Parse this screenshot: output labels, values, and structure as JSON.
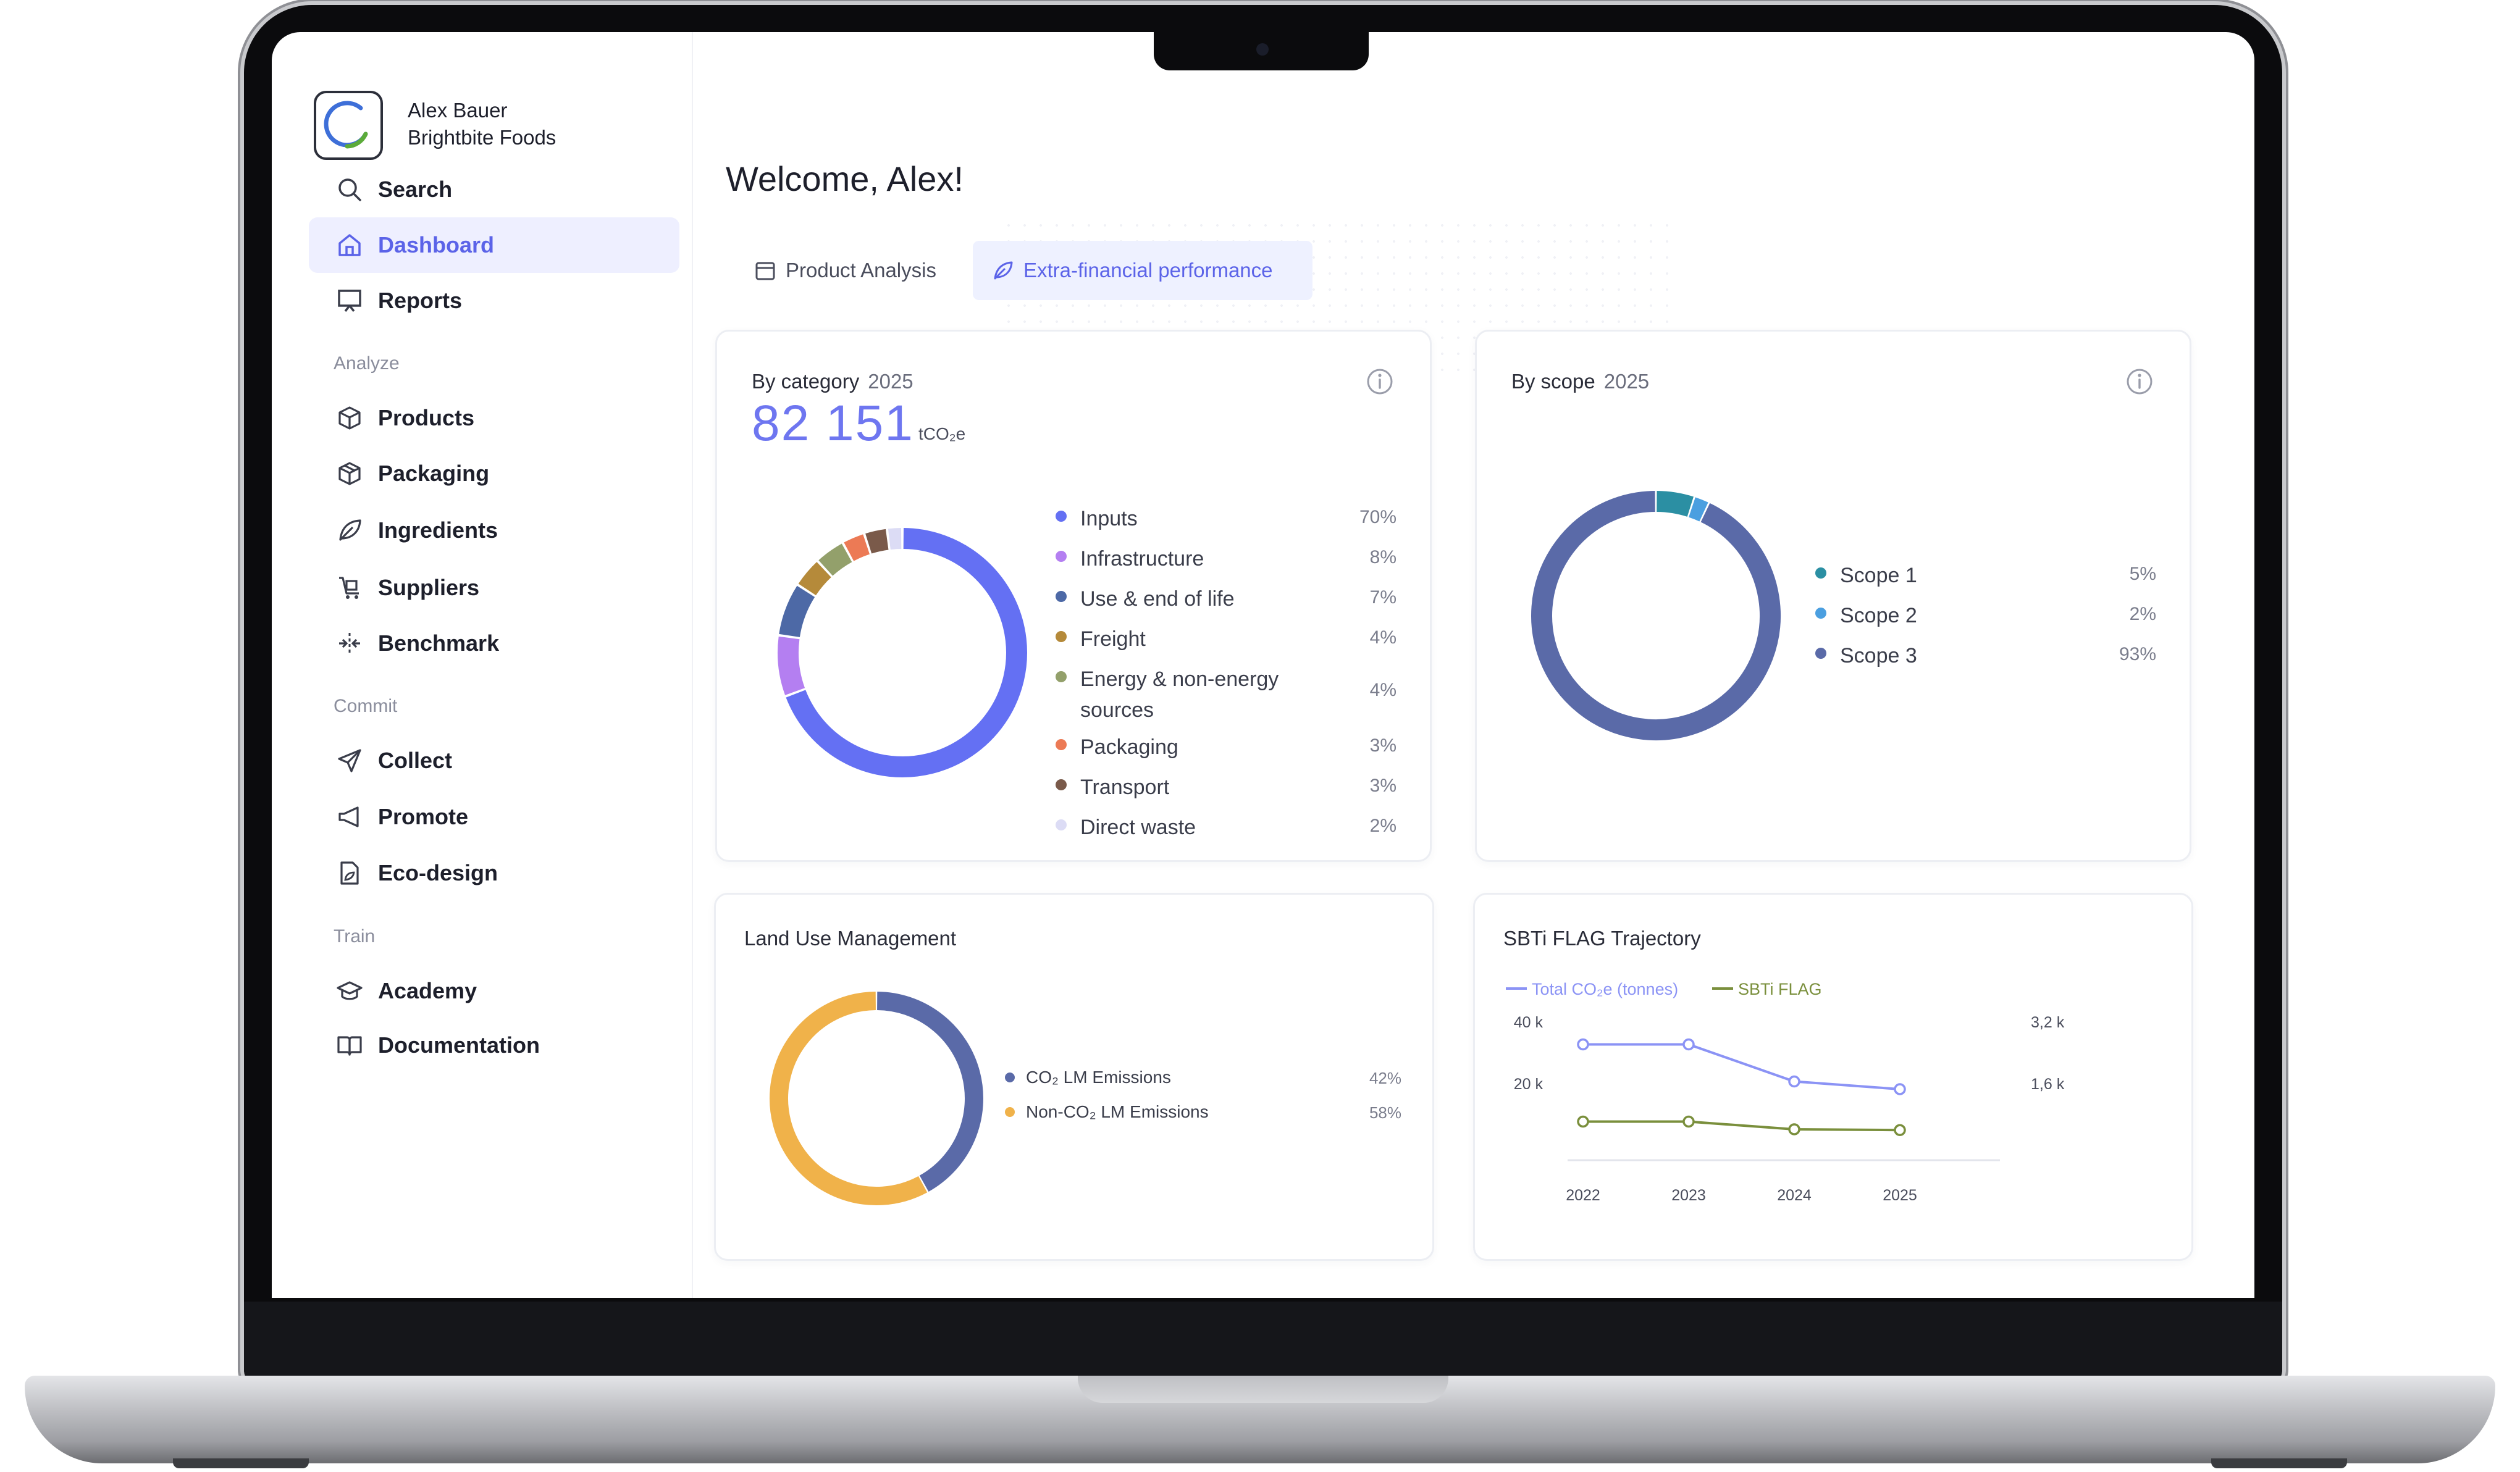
{
  "user": {
    "name": "Alex Bauer",
    "org": "Brightbite Foods"
  },
  "nav": {
    "search": "Search",
    "dashboard": "Dashboard",
    "reports": "Reports",
    "analyze_label": "Analyze",
    "products": "Products",
    "packaging": "Packaging",
    "ingredients": "Ingredients",
    "suppliers": "Suppliers",
    "benchmark": "Benchmark",
    "commit_label": "Commit",
    "collect": "Collect",
    "promote": "Promote",
    "ecodesign": "Eco-design",
    "train_label": "Train",
    "academy": "Academy",
    "documentation": "Documentation"
  },
  "header": {
    "welcome": "Welcome, Alex!"
  },
  "tabs": {
    "product_analysis": "Product Analysis",
    "extra_financial": "Extra-financial performance"
  },
  "colors": {
    "accent": "#5b63e8",
    "scope3": "#5a6aa8",
    "orange": "#f0b24a"
  },
  "by_category": {
    "title": "By category",
    "year": "2025",
    "total": "82 151",
    "unit": "tCO₂e",
    "items": [
      {
        "label": "Inputs",
        "pct": "70%",
        "value": 70,
        "color": "#6470f3"
      },
      {
        "label": "Infrastructure",
        "pct": "8%",
        "value": 8,
        "color": "#b47ff1"
      },
      {
        "label": "Use & end of life",
        "pct": "7%",
        "value": 7,
        "color": "#4d69a6"
      },
      {
        "label": "Freight",
        "pct": "4%",
        "value": 4,
        "color": "#b58a3a"
      },
      {
        "label": "Energy & non-energy sources",
        "pct": "4%",
        "value": 4,
        "color": "#93a06b"
      },
      {
        "label": "Packaging",
        "pct": "3%",
        "value": 3,
        "color": "#ec7a55"
      },
      {
        "label": "Transport",
        "pct": "3%",
        "value": 3,
        "color": "#7a5a4a"
      },
      {
        "label": "Direct waste",
        "pct": "2%",
        "value": 2,
        "color": "#dcdcf5"
      }
    ]
  },
  "by_scope": {
    "title": "By scope",
    "year": "2025",
    "items": [
      {
        "label": "Scope 1",
        "pct": "5%",
        "value": 5,
        "color": "#2b8fa3"
      },
      {
        "label": "Scope 2",
        "pct": "2%",
        "value": 2,
        "color": "#4b9fe0"
      },
      {
        "label": "Scope 3",
        "pct": "93%",
        "value": 93,
        "color": "#5a6aa8"
      }
    ]
  },
  "land_use": {
    "title": "Land Use Management",
    "items": [
      {
        "label": "CO₂ LM Emissions",
        "pct": "42%",
        "value": 42,
        "color": "#5a6aa8"
      },
      {
        "label": "Non-CO₂ LM Emissions",
        "pct": "58%",
        "value": 58,
        "color": "#f0b24a"
      }
    ]
  },
  "chart_data": {
    "type": "line",
    "title": "SBTi FLAG Trajectory",
    "x": [
      "2022",
      "2023",
      "2024",
      "2025"
    ],
    "y_left_ticks": [
      "40 k",
      "20 k"
    ],
    "y_right_ticks": [
      "3,2 k",
      "1,6 k"
    ],
    "ylim_left": [
      0,
      40000
    ],
    "ylim_right": [
      0,
      3200
    ],
    "series": [
      {
        "name": "Total CO₂e (tonnes)",
        "axis": "left",
        "color": "#8b93f5",
        "values": [
          32500,
          32500,
          20500,
          18000
        ]
      },
      {
        "name": "SBTi FLAG",
        "axis": "right",
        "color": "#7a8f3c",
        "values": [
          600,
          600,
          400,
          380
        ]
      }
    ]
  }
}
